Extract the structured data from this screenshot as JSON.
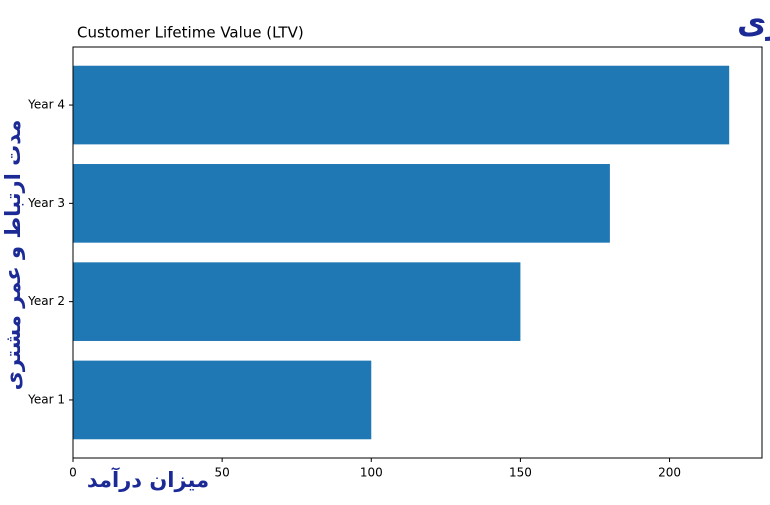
{
  "chart_data": {
    "type": "barh",
    "title": "Customer Lifetime Value (LTV)",
    "title_fa": "نمودار عمر و ماندگاری مشتری",
    "y_label": "مدت ارتباط و عمر مشتری",
    "x_label": "میزان درآمد",
    "categories": [
      "Year 1",
      "Year 2",
      "Year 3",
      "Year 4"
    ],
    "values": [
      100,
      150,
      180,
      220
    ],
    "color": "#1f77b4",
    "xlim": [
      0,
      231
    ],
    "xticks": [
      0,
      50,
      100,
      150,
      200
    ]
  }
}
